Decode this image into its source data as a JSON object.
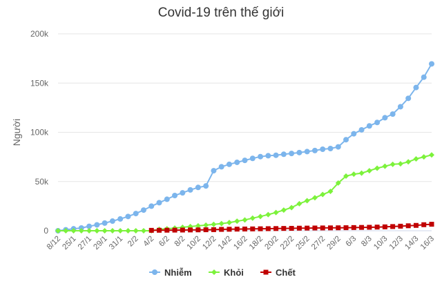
{
  "chart_data": {
    "type": "line",
    "title": "Covid-19 trên thế giới",
    "xlabel": "",
    "ylabel": "Người",
    "ylim": [
      0,
      200000
    ],
    "yticks": [
      "0",
      "50k",
      "100k",
      "150k",
      "200k"
    ],
    "grid": true,
    "legend": "bottom",
    "x_tick_labels": [
      "8/12",
      "25/1",
      "27/1",
      "29/1",
      "31/1",
      "2/2",
      "4/2",
      "6/2",
      "8/2",
      "10/2",
      "12/2",
      "14/2",
      "16/2",
      "18/2",
      "20/2",
      "22/2",
      "25/2",
      "27/2",
      "29/2",
      "6/3",
      "8/3",
      "10/3",
      "12/3",
      "14/3",
      "16/3"
    ],
    "series": [
      {
        "name": "Nhiễm",
        "color": "#7cb5ec",
        "marker": "circle",
        "values": [
          0,
          1000,
          2000,
          2800,
          4500,
          6000,
          7800,
          9800,
          12000,
          14500,
          17500,
          21000,
          25000,
          28500,
          32000,
          35800,
          38500,
          41500,
          44000,
          45500,
          61000,
          65000,
          67500,
          69500,
          71500,
          73500,
          75300,
          76200,
          76700,
          77700,
          78500,
          79400,
          80400,
          81500,
          82800,
          83500,
          85200,
          92500,
          98500,
          102500,
          106500,
          110000,
          114800,
          118500,
          126000,
          134500,
          145500,
          156000,
          169500
        ]
      },
      {
        "name": "Khỏi",
        "color": "#7cf23b",
        "marker": "diamond",
        "values": [
          0,
          0,
          0,
          0,
          0,
          0,
          0,
          0,
          0,
          0,
          0,
          0,
          0,
          1500,
          2000,
          2700,
          3500,
          4300,
          5000,
          5700,
          6500,
          7300,
          8300,
          9700,
          11000,
          12800,
          14500,
          16400,
          18500,
          21000,
          23500,
          27500,
          30500,
          33500,
          36800,
          40000,
          48500,
          55500,
          57500,
          58500,
          61000,
          63500,
          65500,
          67500,
          68000,
          70000,
          73000,
          75000,
          77000
        ]
      },
      {
        "name": "Chết",
        "color": "#c00000",
        "marker": "square",
        "values": [
          null,
          null,
          null,
          null,
          null,
          null,
          null,
          null,
          null,
          null,
          null,
          null,
          427,
          490,
          565,
          640,
          720,
          810,
          910,
          1010,
          1110,
          1370,
          1520,
          1660,
          1770,
          1870,
          2000,
          2120,
          2240,
          2360,
          2460,
          2620,
          2700,
          2800,
          2860,
          2930,
          3010,
          3100,
          3250,
          3380,
          3520,
          3720,
          3950,
          4270,
          4630,
          5050,
          5440,
          6140,
          6610
        ]
      }
    ]
  }
}
